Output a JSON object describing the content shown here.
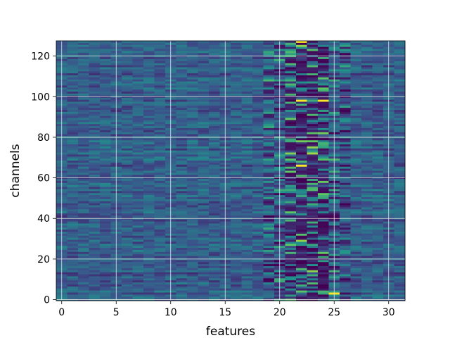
{
  "chart_data": {
    "type": "heatmap",
    "title": "",
    "xlabel": "features",
    "ylabel": "channels",
    "x_range": [
      -0.5,
      31.5
    ],
    "y_range": [
      127.5,
      -0.5
    ],
    "x_ticks": [
      0,
      5,
      10,
      15,
      20,
      25,
      30
    ],
    "y_ticks": [
      0,
      20,
      40,
      60,
      80,
      100,
      120
    ],
    "n_rows": 128,
    "n_cols": 32,
    "grid": true,
    "colormap": "viridis",
    "colors": {
      "low": "#440154",
      "mid_low": "#3b528b",
      "mid": "#21918c",
      "mid_high": "#5ec962",
      "high": "#fde725",
      "grid": "#e6e6e6"
    },
    "highlights": [
      {
        "channel": 0,
        "feature": 22,
        "level": "high"
      },
      {
        "channel": 29,
        "feature": 22,
        "level": "high"
      },
      {
        "channel": 29,
        "feature": 24,
        "level": "high"
      },
      {
        "channel": 61,
        "feature": 22,
        "level": "high"
      },
      {
        "channel": 124,
        "feature": 25,
        "level": "high"
      }
    ]
  }
}
